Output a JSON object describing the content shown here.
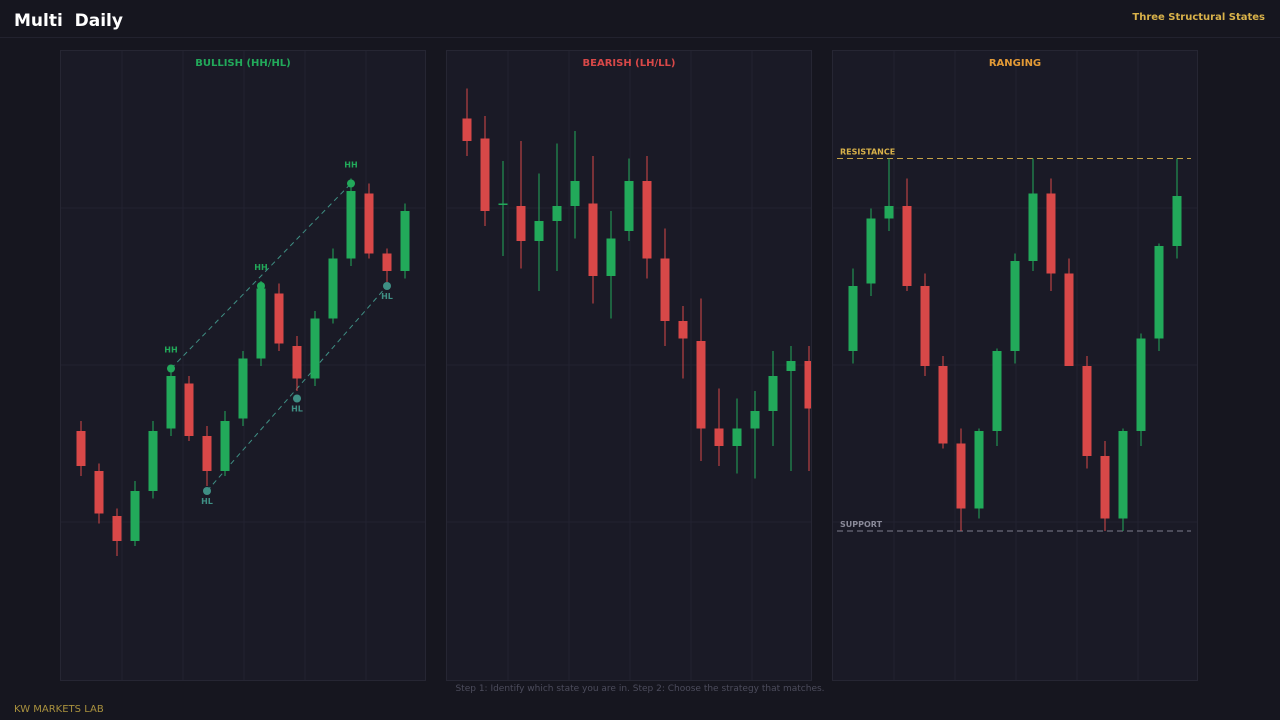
{
  "header": {
    "title": "Multi  Daily",
    "subtitle": "Three Structural States"
  },
  "footer": {
    "caption": "Step 1: Identify which state you are in. Step 2: Choose the strategy that matches.",
    "brand": "KW MARKETS LAB"
  },
  "colors": {
    "background": "#16161f",
    "panel": "#1a1a26",
    "bullish": "#22a95a",
    "bearish": "#d84848",
    "ranging": "#e39a36",
    "level_line": "#d9b24a",
    "swing_high": "#22a95a",
    "swing_low": "#3f8f84"
  },
  "chart_data": [
    {
      "type": "candlestick",
      "title": "BULLISH (HH/HL)",
      "title_color": "#22a95a",
      "ylim": [
        0,
        100
      ],
      "candles": [
        {
          "o": 34.0,
          "h": 36.0,
          "l": 25.0,
          "c": 27.0
        },
        {
          "o": 26.0,
          "h": 27.5,
          "l": 15.5,
          "c": 17.5
        },
        {
          "o": 17.0,
          "h": 18.5,
          "l": 9.0,
          "c": 12.0
        },
        {
          "o": 12.0,
          "h": 24.0,
          "l": 11.0,
          "c": 22.0
        },
        {
          "o": 22.0,
          "h": 36.0,
          "l": 20.5,
          "c": 34.0
        },
        {
          "o": 34.5,
          "h": 47.0,
          "l": 33.0,
          "c": 45.0
        },
        {
          "o": 43.5,
          "h": 45.0,
          "l": 32.0,
          "c": 33.0
        },
        {
          "o": 33.0,
          "h": 35.0,
          "l": 23.0,
          "c": 26.0
        },
        {
          "o": 26.0,
          "h": 38.0,
          "l": 25.0,
          "c": 36.0
        },
        {
          "o": 36.5,
          "h": 50.0,
          "l": 35.0,
          "c": 48.5
        },
        {
          "o": 48.5,
          "h": 64.0,
          "l": 47.0,
          "c": 62.5
        },
        {
          "o": 61.5,
          "h": 63.5,
          "l": 50.0,
          "c": 51.5
        },
        {
          "o": 51.0,
          "h": 53.0,
          "l": 42.0,
          "c": 44.5
        },
        {
          "o": 44.5,
          "h": 58.0,
          "l": 43.0,
          "c": 56.5
        },
        {
          "o": 56.5,
          "h": 70.5,
          "l": 55.5,
          "c": 68.5
        },
        {
          "o": 68.5,
          "h": 84.5,
          "l": 67.0,
          "c": 82.0
        },
        {
          "o": 81.5,
          "h": 83.5,
          "l": 68.5,
          "c": 69.5
        },
        {
          "o": 69.5,
          "h": 70.5,
          "l": 63.0,
          "c": 66.0
        },
        {
          "o": 66.0,
          "h": 79.5,
          "l": 64.5,
          "c": 78.0
        }
      ],
      "swing_points": [
        {
          "index": 5,
          "value": 46.5,
          "label": "HH",
          "kind": "high"
        },
        {
          "index": 10,
          "value": 63.0,
          "label": "HH",
          "kind": "high"
        },
        {
          "index": 15,
          "value": 83.5,
          "label": "HH",
          "kind": "high"
        },
        {
          "index": 7,
          "value": 22.0,
          "label": "HL",
          "kind": "low"
        },
        {
          "index": 12,
          "value": 40.5,
          "label": "HL",
          "kind": "low"
        },
        {
          "index": 17,
          "value": 63.0,
          "label": "HL",
          "kind": "low"
        }
      ],
      "trendlines": [
        {
          "from": [
            5,
            46.5
          ],
          "to": [
            15,
            83.5
          ]
        },
        {
          "from": [
            7,
            22.0
          ],
          "to": [
            17,
            63.0
          ]
        }
      ]
    },
    {
      "type": "candlestick",
      "title": "BEARISH (LH/LL)",
      "title_color": "#d84848",
      "ylim": [
        0,
        100
      ],
      "candles": [
        {
          "o": 96.5,
          "h": 102.5,
          "l": 89.0,
          "c": 92.0
        },
        {
          "o": 92.5,
          "h": 97.0,
          "l": 75.0,
          "c": 78.0
        },
        {
          "o": 79.5,
          "h": 88.0,
          "l": 69.0,
          "c": 79.5
        },
        {
          "o": 79.0,
          "h": 92.0,
          "l": 66.5,
          "c": 72.0
        },
        {
          "o": 72.0,
          "h": 85.5,
          "l": 62.0,
          "c": 76.0
        },
        {
          "o": 76.0,
          "h": 91.5,
          "l": 66.0,
          "c": 79.0
        },
        {
          "o": 79.0,
          "h": 94.0,
          "l": 72.5,
          "c": 84.0
        },
        {
          "o": 79.5,
          "h": 89.0,
          "l": 59.5,
          "c": 65.0
        },
        {
          "o": 65.0,
          "h": 78.0,
          "l": 56.5,
          "c": 72.5
        },
        {
          "o": 74.0,
          "h": 88.5,
          "l": 72.0,
          "c": 84.0
        },
        {
          "o": 84.0,
          "h": 89.0,
          "l": 64.5,
          "c": 68.5
        },
        {
          "o": 68.5,
          "h": 74.5,
          "l": 51.0,
          "c": 56.0
        },
        {
          "o": 56.0,
          "h": 59.0,
          "l": 44.5,
          "c": 52.5
        },
        {
          "o": 52.0,
          "h": 60.5,
          "l": 28.0,
          "c": 34.5
        },
        {
          "o": 34.5,
          "h": 42.5,
          "l": 27.0,
          "c": 31.0
        },
        {
          "o": 31.0,
          "h": 40.5,
          "l": 25.5,
          "c": 34.5
        },
        {
          "o": 34.5,
          "h": 42.0,
          "l": 24.5,
          "c": 38.0
        },
        {
          "o": 38.0,
          "h": 50.0,
          "l": 31.0,
          "c": 45.0
        },
        {
          "o": 46.0,
          "h": 51.0,
          "l": 26.0,
          "c": 48.0
        },
        {
          "o": 48.0,
          "h": 51.0,
          "l": 26.0,
          "c": 38.5
        }
      ]
    },
    {
      "type": "candlestick",
      "title": "RANGING",
      "title_color": "#e39a36",
      "ylim": [
        0,
        100
      ],
      "levels": [
        {
          "label": "RESISTANCE",
          "value": 88.5,
          "color": "#d9b24a"
        },
        {
          "label": "SUPPORT",
          "value": 14.0,
          "color": "#8a8a99"
        }
      ],
      "candles": [
        {
          "o": 50.0,
          "h": 66.5,
          "l": 47.5,
          "c": 63.0
        },
        {
          "o": 63.5,
          "h": 78.5,
          "l": 61.0,
          "c": 76.5
        },
        {
          "o": 76.5,
          "h": 88.5,
          "l": 74.0,
          "c": 79.0
        },
        {
          "o": 79.0,
          "h": 84.5,
          "l": 62.0,
          "c": 63.0
        },
        {
          "o": 63.0,
          "h": 65.5,
          "l": 45.0,
          "c": 47.0
        },
        {
          "o": 47.0,
          "h": 49.0,
          "l": 30.5,
          "c": 31.5
        },
        {
          "o": 31.5,
          "h": 34.5,
          "l": 14.0,
          "c": 18.5
        },
        {
          "o": 18.5,
          "h": 34.5,
          "l": 16.5,
          "c": 34.0
        },
        {
          "o": 34.0,
          "h": 50.5,
          "l": 31.0,
          "c": 50.0
        },
        {
          "o": 50.0,
          "h": 69.5,
          "l": 47.5,
          "c": 68.0
        },
        {
          "o": 68.0,
          "h": 88.5,
          "l": 66.0,
          "c": 81.5
        },
        {
          "o": 81.5,
          "h": 84.5,
          "l": 62.0,
          "c": 65.5
        },
        {
          "o": 65.5,
          "h": 68.5,
          "l": 47.0,
          "c": 47.0
        },
        {
          "o": 47.0,
          "h": 49.0,
          "l": 26.5,
          "c": 29.0
        },
        {
          "o": 29.0,
          "h": 32.0,
          "l": 14.0,
          "c": 16.5
        },
        {
          "o": 16.5,
          "h": 34.5,
          "l": 14.0,
          "c": 34.0
        },
        {
          "o": 34.0,
          "h": 53.5,
          "l": 31.0,
          "c": 52.5
        },
        {
          "o": 52.5,
          "h": 71.5,
          "l": 50.0,
          "c": 71.0
        },
        {
          "o": 71.0,
          "h": 88.5,
          "l": 68.5,
          "c": 81.0
        }
      ]
    }
  ]
}
